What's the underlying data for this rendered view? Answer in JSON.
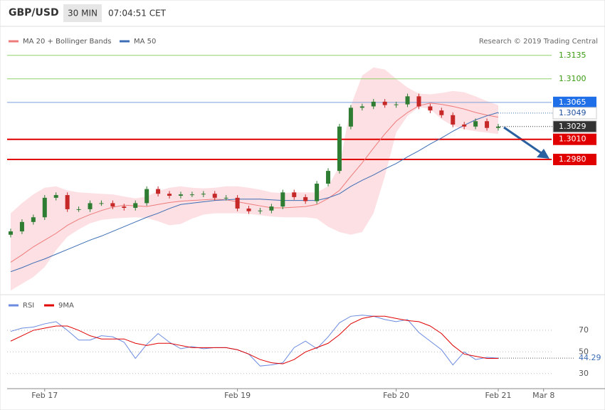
{
  "chart_data": [
    {
      "type": "candlestick",
      "title": "GBP/USD",
      "timeframe": "30 MIN",
      "time": "07:04:51 CET",
      "credit": "Research © 2019 Trading Central",
      "ylim": [
        1.2783,
        1.3175
      ],
      "up_color": "#2e7d32",
      "down_color": "#c62828",
      "open": [
        1.2868,
        1.2873,
        1.2887,
        1.2894,
        1.2923,
        1.2927,
        1.2906,
        1.2906,
        1.2915,
        1.2915,
        1.291,
        1.2908,
        1.2915,
        1.2936,
        1.2929,
        1.2926,
        1.2928,
        1.2928,
        1.2929,
        1.2923,
        1.2923,
        1.2907,
        1.2903,
        1.2904,
        1.291,
        1.2931,
        1.2924,
        1.2918,
        1.2944,
        1.2963,
        1.3029,
        1.3057,
        1.3059,
        1.3066,
        1.3061,
        1.3062,
        1.3074,
        1.3059,
        1.3053,
        1.3046,
        1.3032,
        1.3029,
        1.3037,
        1.3027
      ],
      "high": [
        1.2877,
        1.2891,
        1.2898,
        1.2927,
        1.2931,
        1.2931,
        1.291,
        1.2919,
        1.2919,
        1.2919,
        1.2914,
        1.2919,
        1.294,
        1.294,
        1.2933,
        1.2932,
        1.2932,
        1.2933,
        1.2933,
        1.2927,
        1.2927,
        1.2911,
        1.2908,
        1.2914,
        1.2935,
        1.2935,
        1.2928,
        1.2948,
        1.2967,
        1.3033,
        1.3061,
        1.3063,
        1.307,
        1.307,
        1.3066,
        1.3078,
        1.3078,
        1.3063,
        1.3057,
        1.305,
        1.3036,
        1.3041,
        1.3041,
        1.3033
      ],
      "low": [
        1.2864,
        1.2869,
        1.2883,
        1.289,
        1.2919,
        1.2902,
        1.2902,
        1.2902,
        1.2911,
        1.2906,
        1.2904,
        1.2904,
        1.2911,
        1.2925,
        1.2922,
        1.2922,
        1.2924,
        1.2924,
        1.2919,
        1.2919,
        1.2903,
        1.2899,
        1.2899,
        1.29,
        1.2906,
        1.292,
        1.2914,
        1.2914,
        1.294,
        1.2959,
        1.3025,
        1.3053,
        1.3055,
        1.3057,
        1.3057,
        1.3058,
        1.3055,
        1.3049,
        1.3042,
        1.3028,
        1.3025,
        1.3025,
        1.3023,
        1.3023
      ],
      "close": [
        1.2873,
        1.2887,
        1.2894,
        1.2923,
        1.2927,
        1.2906,
        1.2906,
        1.2915,
        1.2915,
        1.291,
        1.2908,
        1.2915,
        1.2936,
        1.2929,
        1.2926,
        1.2928,
        1.2928,
        1.2929,
        1.2923,
        1.2923,
        1.2907,
        1.2903,
        1.2904,
        1.291,
        1.2931,
        1.2924,
        1.2918,
        1.2944,
        1.2963,
        1.3029,
        1.3057,
        1.3059,
        1.3066,
        1.3061,
        1.3062,
        1.3074,
        1.3059,
        1.3053,
        1.3046,
        1.3032,
        1.3029,
        1.3037,
        1.3027,
        1.3029
      ],
      "series": [
        {
          "name": "MA 20 + Bollinger Bands",
          "color": "#ee7b7b",
          "band_color": "#fde0e3",
          "values": [
            1.2827,
            1.2838,
            1.285,
            1.286,
            1.287,
            1.2882,
            1.2891,
            1.2898,
            1.2904,
            1.2909,
            1.2912,
            1.2911,
            1.291,
            1.2913,
            1.2916,
            1.2918,
            1.2919,
            1.292,
            1.2921,
            1.292,
            1.2917,
            1.2914,
            1.2911,
            1.2908,
            1.2908,
            1.2909,
            1.291,
            1.2913,
            1.2922,
            1.2934,
            1.2955,
            1.2975,
            1.2997,
            1.3018,
            1.3037,
            1.305,
            1.306,
            1.3064,
            1.3062,
            1.3059,
            1.3055,
            1.305,
            1.3046,
            1.3043
          ],
          "upper": [
            1.29,
            1.2915,
            1.2928,
            1.2938,
            1.294,
            1.2934,
            1.2931,
            1.293,
            1.2929,
            1.2928,
            1.2925,
            1.2922,
            1.2925,
            1.2933,
            1.2938,
            1.294,
            1.2938,
            1.2937,
            1.2938,
            1.294,
            1.294,
            1.2938,
            1.2935,
            1.2931,
            1.293,
            1.2931,
            1.2931,
            1.2931,
            1.294,
            1.297,
            1.306,
            1.3105,
            1.3117,
            1.3114,
            1.31,
            1.3087,
            1.3078,
            1.3077,
            1.3079,
            1.3082,
            1.308,
            1.3074,
            1.3067,
            1.3061
          ],
          "lower": [
            1.2785,
            1.2795,
            1.2805,
            1.282,
            1.2845,
            1.2865,
            1.2876,
            1.2885,
            1.289,
            1.2892,
            1.2893,
            1.2894,
            1.2893,
            1.2888,
            1.2882,
            1.2884,
            1.2892,
            1.2898,
            1.29,
            1.29,
            1.29,
            1.2899,
            1.2897,
            1.2895,
            1.2894,
            1.2894,
            1.2894,
            1.2892,
            1.288,
            1.2872,
            1.2868,
            1.2872,
            1.29,
            1.2955,
            1.302,
            1.3045,
            1.3058,
            1.3055,
            1.304,
            1.303,
            1.3025,
            1.3022,
            1.302,
            1.3018
          ]
        },
        {
          "name": "MA 50",
          "color": "#3d6db5",
          "values": [
            1.2813,
            1.2819,
            1.2826,
            1.2832,
            1.2839,
            1.2846,
            1.2853,
            1.286,
            1.2866,
            1.2873,
            1.288,
            1.2887,
            1.2894,
            1.29,
            1.2907,
            1.2913,
            1.2915,
            1.2917,
            1.2919,
            1.292,
            1.2921,
            1.2921,
            1.2921,
            1.292,
            1.2919,
            1.2919,
            1.2919,
            1.2919,
            1.2923,
            1.2929,
            1.294,
            1.2949,
            1.2957,
            1.2966,
            1.2974,
            1.2984,
            1.2993,
            1.3003,
            1.3012,
            1.3022,
            1.3031,
            1.3039,
            1.3045,
            1.305
          ]
        }
      ],
      "levels": [
        {
          "value": 1.3135,
          "color": "#8fd16a",
          "text_color": "#3a9a10",
          "boxed": false
        },
        {
          "value": 1.31,
          "label": "1.3100",
          "color": "#8fd16a",
          "text_color": "#3a9a10",
          "boxed": false
        },
        {
          "value": 1.3065,
          "color": "#7b9fdc",
          "box_color": "#1f6fe8",
          "text_color": "#ffffff",
          "boxed": true
        },
        {
          "value": 1.301,
          "label": "1.3010",
          "color": "#e00000",
          "box_color": "#e00000",
          "text_color": "#ffffff",
          "boxed": true
        },
        {
          "value": 1.298,
          "label": "1.2980",
          "color": "#e00000",
          "box_color": "#e00000",
          "text_color": "#ffffff",
          "boxed": true
        }
      ],
      "markers": [
        {
          "value": 1.3049,
          "box_color": "#ffffff",
          "text_color": "#1f4f9f",
          "line_color": "#3d6db5"
        },
        {
          "value": 1.3029,
          "box_color": "#333333",
          "text_color": "#ffffff",
          "line_color": "#333333"
        }
      ]
    },
    {
      "type": "line",
      "ylim": [
        20,
        99
      ],
      "yticks": [
        30,
        50,
        70
      ],
      "categories": [
        null,
        null,
        null,
        "Feb 17",
        null,
        null,
        null,
        null,
        null,
        null,
        null,
        null,
        null,
        null,
        null,
        null,
        null,
        null,
        null,
        null,
        "Feb 19",
        null,
        null,
        null,
        null,
        null,
        null,
        null,
        null,
        null,
        null,
        null,
        null,
        null,
        "Feb 20",
        null,
        null,
        null,
        null,
        null,
        null,
        null,
        null,
        "Feb 21",
        null,
        null,
        null,
        "Mar 8"
      ],
      "series": [
        {
          "name": "RSI",
          "color": "#6b8be0",
          "values": [
            69,
            72,
            73,
            76,
            78,
            70,
            61,
            61,
            65,
            64,
            59,
            44,
            57,
            67,
            59,
            53,
            55,
            53,
            54,
            54,
            52,
            48,
            37,
            38,
            40,
            54,
            60,
            53,
            64,
            77,
            83,
            84,
            83,
            80,
            78,
            80,
            68,
            60,
            52,
            38,
            50,
            43,
            45,
            44.29,
            null,
            null,
            null,
            null
          ]
        },
        {
          "name": "9MA",
          "color": "#e00000",
          "values": [
            60,
            65,
            70,
            72,
            74,
            74,
            70,
            65,
            62,
            62,
            62,
            58,
            56,
            58,
            58,
            56,
            54,
            54,
            54,
            54,
            52,
            48,
            43,
            40,
            39,
            43,
            50,
            54,
            58,
            66,
            76,
            81,
            83,
            83,
            81,
            79,
            78,
            74,
            67,
            56,
            48,
            46,
            44,
            44,
            null,
            null,
            null,
            null
          ]
        }
      ]
    }
  ]
}
